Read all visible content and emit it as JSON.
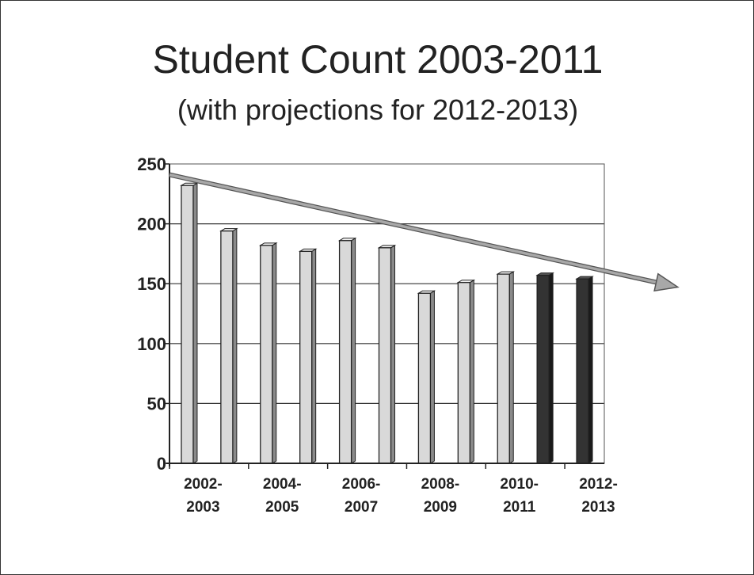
{
  "slide": {
    "title": "Student Count 2003-2011",
    "subtitle": "(with projections for 2012-2013)"
  },
  "chart_data": {
    "type": "bar",
    "title": "Student Count 2003-2011",
    "subtitle": "(with projections for 2012-2013)",
    "xlabel": "",
    "ylabel": "",
    "ylim": [
      0,
      250
    ],
    "yticks": [
      0,
      50,
      100,
      150,
      200,
      250
    ],
    "grid": true,
    "legend": "none",
    "x_tick_labels": [
      {
        "top": "2002-",
        "bottom": "2003"
      },
      {
        "top": "2004-",
        "bottom": "2005"
      },
      {
        "top": "2006-",
        "bottom": "2007"
      },
      {
        "top": "2008-",
        "bottom": "2009"
      },
      {
        "top": "2010-",
        "bottom": "2011"
      },
      {
        "top": "2012-",
        "bottom": "2013"
      }
    ],
    "bars": [
      {
        "value": 232,
        "projection": false
      },
      {
        "value": 194,
        "projection": false
      },
      {
        "value": 182,
        "projection": false
      },
      {
        "value": 177,
        "projection": false
      },
      {
        "value": 186,
        "projection": false
      },
      {
        "value": 180,
        "projection": false
      },
      {
        "value": 142,
        "projection": false
      },
      {
        "value": 151,
        "projection": false
      },
      {
        "value": 158,
        "projection": false
      },
      {
        "value": 157,
        "projection": true
      },
      {
        "value": 154,
        "projection": true
      }
    ],
    "trend_line": {
      "start_value": 241,
      "end_value": 148
    },
    "colors": {
      "actual": "#d9d9d9",
      "projection": "#333333",
      "trend": "#a8a8a8",
      "grid": "#333333"
    }
  }
}
